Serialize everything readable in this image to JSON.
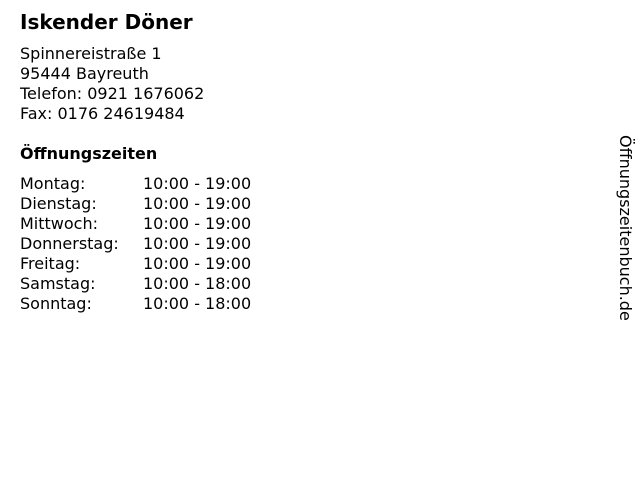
{
  "business": {
    "name": "Iskender Döner",
    "street": "Spinnereistraße 1",
    "city": "95444 Bayreuth",
    "phone": "Telefon: 0921 1676062",
    "fax": "Fax: 0176 24619484"
  },
  "hours": {
    "heading": "Öffnungszeiten",
    "rows": [
      {
        "day": "Montag:",
        "time": "10:00 - 19:00"
      },
      {
        "day": "Dienstag:",
        "time": "10:00 - 19:00"
      },
      {
        "day": "Mittwoch:",
        "time": "10:00 - 19:00"
      },
      {
        "day": "Donnerstag:",
        "time": "10:00 - 19:00"
      },
      {
        "day": "Freitag:",
        "time": "10:00 - 19:00"
      },
      {
        "day": "Samstag:",
        "time": "10:00 - 18:00"
      },
      {
        "day": "Sonntag:",
        "time": "10:00 - 18:00"
      }
    ]
  },
  "watermark": "Öffnungszeitenbuch.de"
}
